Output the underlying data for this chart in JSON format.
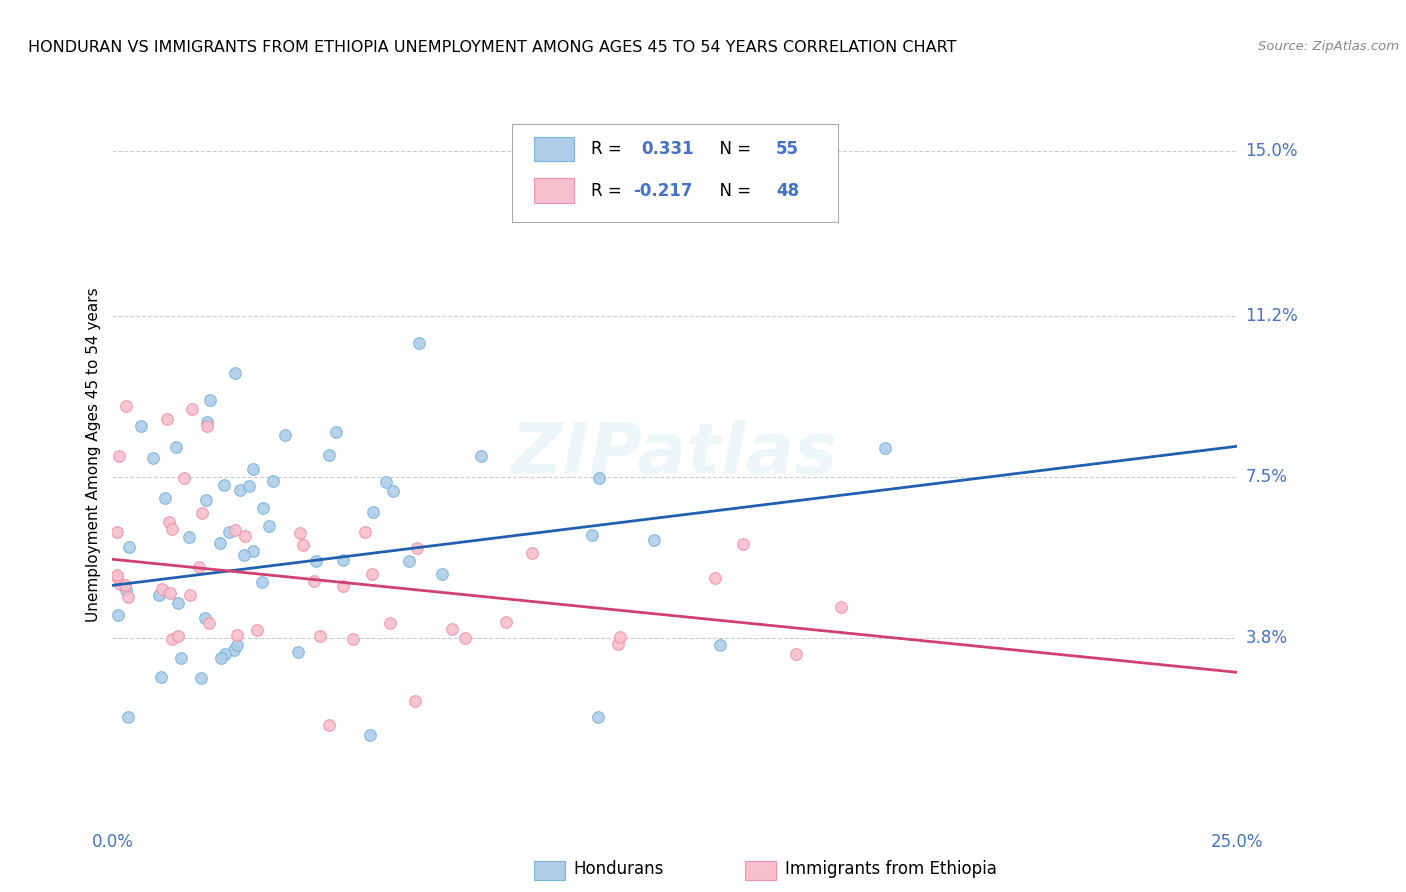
{
  "title": "HONDURAN VS IMMIGRANTS FROM ETHIOPIA UNEMPLOYMENT AMONG AGES 45 TO 54 YEARS CORRELATION CHART",
  "source": "Source: ZipAtlas.com",
  "ylabel": "Unemployment Among Ages 45 to 54 years",
  "xlim": [
    0.0,
    0.25
  ],
  "ylim": [
    0.0,
    0.16
  ],
  "yticks": [
    0.0,
    0.038,
    0.075,
    0.112,
    0.15
  ],
  "ytick_labels": [
    "",
    "3.8%",
    "7.5%",
    "11.2%",
    "15.0%"
  ],
  "color_blue_edge": "#7ab3d9",
  "color_blue_fill": "#aecde8",
  "color_pink_edge": "#f090aa",
  "color_pink_fill": "#f8c0cf",
  "color_blue_line": "#2060b0",
  "color_pink_line": "#d04070",
  "color_label_blue": "#4472c4",
  "watermark": "ZIPatlas",
  "blue_R": 0.331,
  "blue_N": 55,
  "pink_R": -0.217,
  "pink_N": 48,
  "blue_line_x0": 0.0,
  "blue_line_y0": 0.05,
  "blue_line_x1": 0.25,
  "blue_line_y1": 0.082,
  "pink_line_x0": 0.0,
  "pink_line_y0": 0.056,
  "pink_line_x1": 0.25,
  "pink_line_y1": 0.03
}
